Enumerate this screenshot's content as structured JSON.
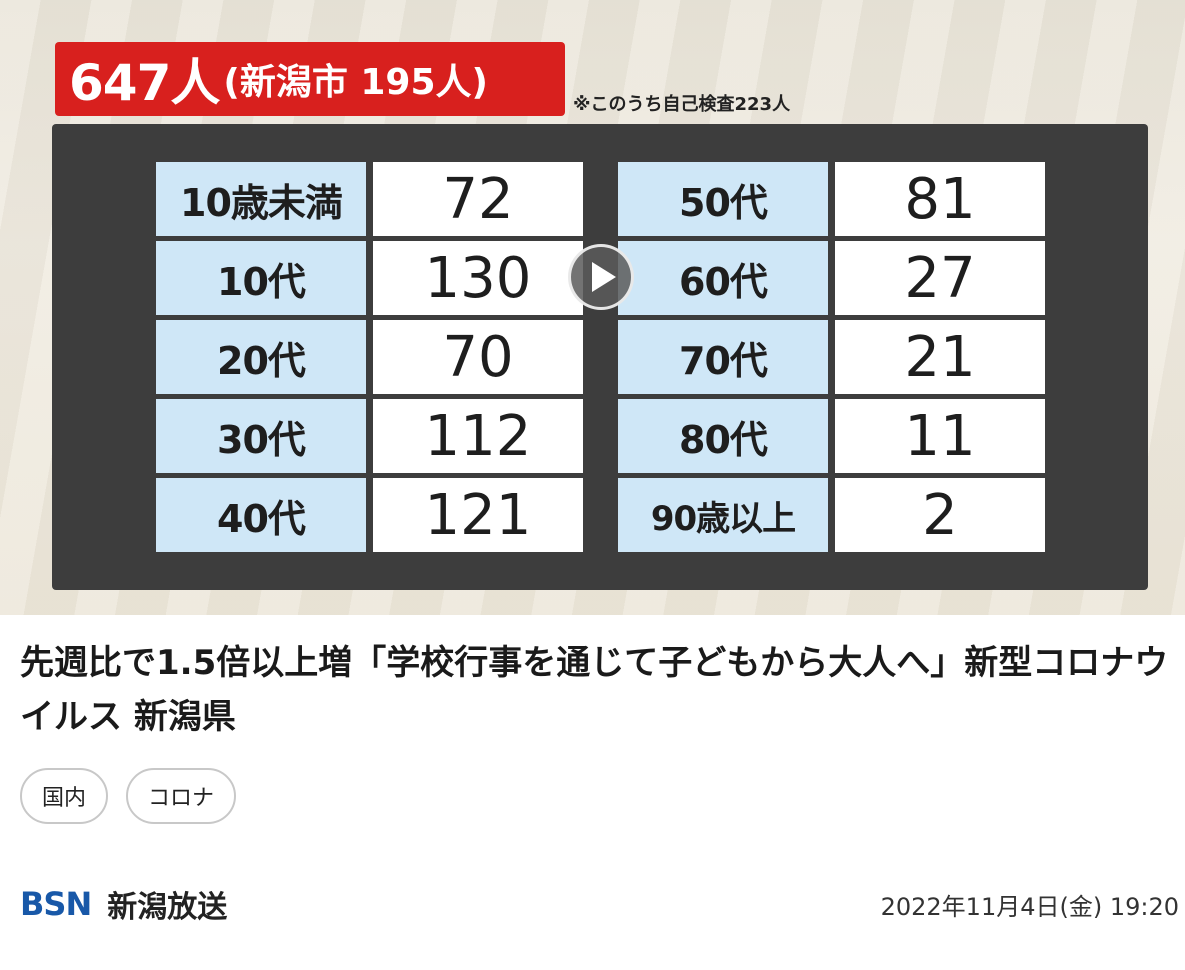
{
  "thumbnail": {
    "headline_total": "647人",
    "headline_city": "(新潟市 195人)",
    "note": "※このうち自己検査223人",
    "left_rows": [
      {
        "label": "10歳未満",
        "value": "72"
      },
      {
        "label": "10代",
        "value": "130"
      },
      {
        "label": "20代",
        "value": "70"
      },
      {
        "label": "30代",
        "value": "112"
      },
      {
        "label": "40代",
        "value": "121"
      }
    ],
    "right_rows": [
      {
        "label": "50代",
        "value": "81"
      },
      {
        "label": "60代",
        "value": "27"
      },
      {
        "label": "70代",
        "value": "21"
      },
      {
        "label": "80代",
        "value": "11"
      },
      {
        "label": "90歳以上",
        "value": "2"
      }
    ],
    "play_icon": "play-icon"
  },
  "article": {
    "title": "先週比で1.5倍以上増「学校行事を通じて子どもから大人へ」新型コロナウイルス 新潟県",
    "tags": [
      "国内",
      "コロナ"
    ],
    "source_logo": "BSN",
    "source_name": "新潟放送",
    "datetime": "2022年11月4日(金) 19:20"
  },
  "colors": {
    "headline_red": "#d8201e",
    "label_blue": "#cfe7f7",
    "board_gray": "#3d3d3d",
    "logo_blue": "#1858a8"
  }
}
